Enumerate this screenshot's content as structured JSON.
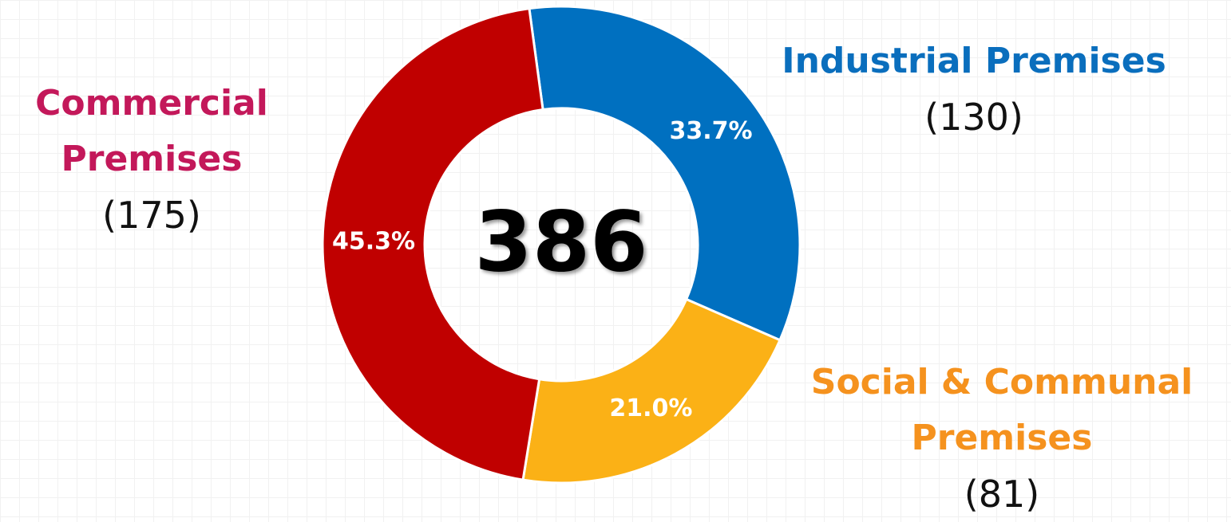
{
  "chart_data": {
    "type": "donut",
    "categories": [
      "Industrial Premises",
      "Social & Communal Premises",
      "Commercial Premises"
    ],
    "values": [
      33.7,
      21.0,
      45.3
    ],
    "value_labels": [
      "33.7%",
      "21.0%",
      "45.3%"
    ],
    "counts": [
      130,
      81,
      175
    ],
    "count_labels": [
      "(130)",
      "(81)",
      "(175)"
    ],
    "colors": [
      "#0070c0",
      "#fbb116",
      "#c00000"
    ],
    "total": 386
  }
}
